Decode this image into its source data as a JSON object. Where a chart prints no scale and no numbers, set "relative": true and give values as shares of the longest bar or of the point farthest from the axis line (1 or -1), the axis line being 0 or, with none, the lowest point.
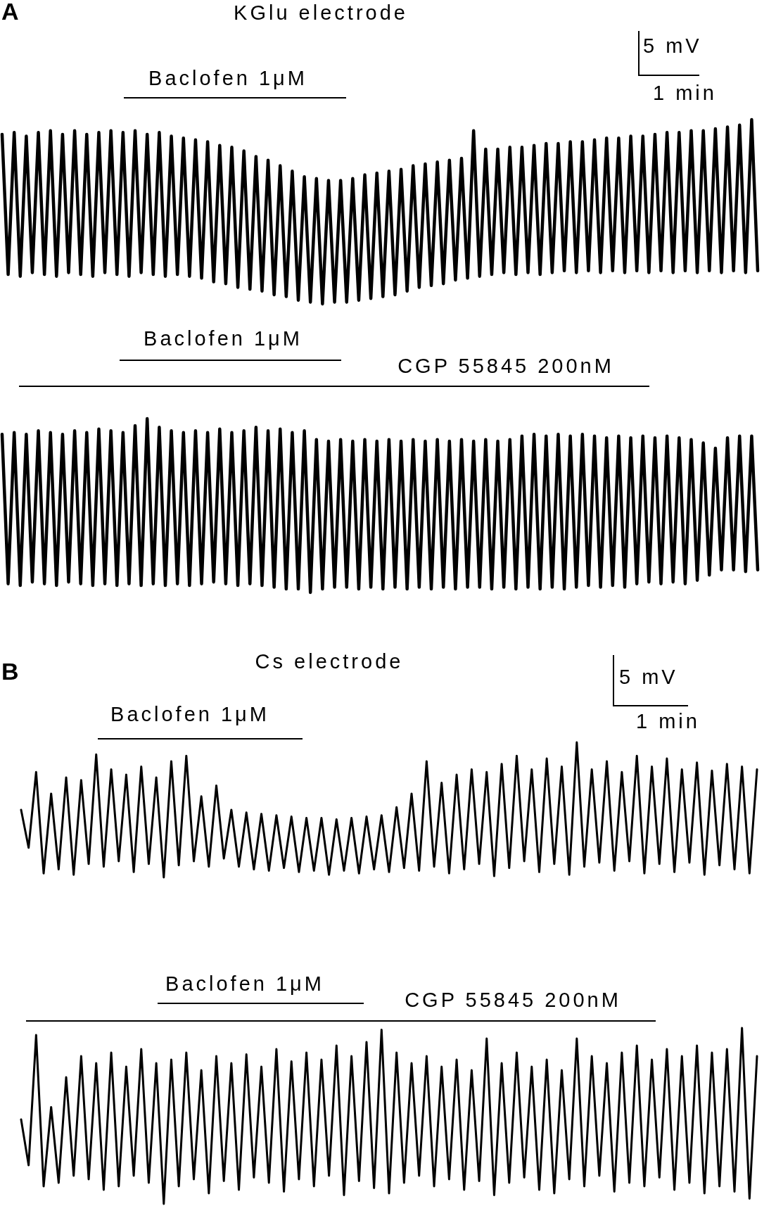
{
  "chart_data": [
    {
      "type": "line",
      "title": "KGlu electrode",
      "categories": [
        null,
        null,
        null,
        null,
        null,
        null,
        null,
        null,
        null,
        null,
        null,
        null,
        null,
        null,
        null,
        null,
        null,
        null,
        null,
        null,
        null,
        null,
        null,
        null,
        null,
        null,
        null,
        null,
        null,
        null,
        null,
        null,
        null,
        null,
        null,
        null,
        null,
        null,
        null,
        null,
        null,
        null,
        null,
        null,
        null,
        null,
        null,
        null,
        null,
        null,
        null,
        null,
        null,
        null,
        null,
        null,
        null,
        null,
        null,
        null,
        null,
        null,
        null,
        null,
        null,
        null,
        null,
        null,
        null,
        null,
        null,
        null,
        null,
        null,
        null,
        null,
        null,
        null,
        null,
        null,
        null,
        null,
        null,
        null,
        null,
        null,
        null,
        null,
        null,
        null,
        null,
        null,
        null,
        null,
        null,
        null,
        null,
        null,
        null,
        null,
        null,
        null,
        null,
        null,
        null,
        null,
        null,
        null,
        null,
        null,
        null,
        null,
        null,
        null,
        null,
        null,
        null,
        null,
        null,
        null,
        null,
        null,
        null,
        null,
        null,
        null
      ],
      "series": [
        {
          "color": "#000000",
          "values": [
            0.92,
            0.16,
            0.93,
            0.15,
            0.91,
            0.17,
            0.93,
            0.16,
            0.94,
            0.15,
            0.92,
            0.17,
            0.94,
            0.16,
            0.92,
            0.15,
            0.93,
            0.17,
            0.94,
            0.16,
            0.93,
            0.15,
            0.94,
            0.17,
            0.92,
            0.16,
            0.93,
            0.15,
            0.91,
            0.16,
            0.9,
            0.15,
            0.89,
            0.14,
            0.88,
            0.12,
            0.86,
            0.11,
            0.85,
            0.09,
            0.83,
            0.08,
            0.8,
            0.07,
            0.78,
            0.05,
            0.75,
            0.04,
            0.72,
            0.02,
            0.69,
            0.01,
            0.68,
            0,
            0.67,
            0.01,
            0.67,
            0.01,
            0.68,
            0.02,
            0.7,
            0.03,
            0.71,
            0.04,
            0.72,
            0.05,
            0.73,
            0.07,
            0.75,
            0.09,
            0.76,
            0.1,
            0.77,
            0.11,
            0.78,
            0.13,
            0.79,
            0.14,
            0.94,
            0.15,
            0.84,
            0.16,
            0.84,
            0.17,
            0.85,
            0.16,
            0.85,
            0.17,
            0.86,
            0.16,
            0.87,
            0.17,
            0.87,
            0.18,
            0.88,
            0.17,
            0.88,
            0.18,
            0.89,
            0.17,
            0.9,
            0.18,
            0.9,
            0.17,
            0.91,
            0.18,
            0.91,
            0.17,
            0.92,
            0.18,
            0.93,
            0.17,
            0.93,
            0.18,
            0.94,
            0.17,
            0.94,
            0.18,
            0.95,
            0.17,
            0.96,
            0.18,
            0.97,
            0.17,
            1,
            0.18
          ]
        }
      ],
      "relative": true,
      "tick_labels": false,
      "marker": "none",
      "annotations": [
        "A",
        "5 mV",
        "1 min",
        "Baclofen 1μM"
      ]
    },
    {
      "type": "line",
      "categories": [
        null,
        null,
        null,
        null,
        null,
        null,
        null,
        null,
        null,
        null,
        null,
        null,
        null,
        null,
        null,
        null,
        null,
        null,
        null,
        null,
        null,
        null,
        null,
        null,
        null,
        null,
        null,
        null,
        null,
        null,
        null,
        null,
        null,
        null,
        null,
        null,
        null,
        null,
        null,
        null,
        null,
        null,
        null,
        null,
        null,
        null,
        null,
        null,
        null,
        null,
        null,
        null,
        null,
        null,
        null,
        null,
        null,
        null,
        null,
        null,
        null,
        null,
        null,
        null,
        null,
        null,
        null,
        null,
        null,
        null,
        null,
        null,
        null,
        null,
        null,
        null,
        null,
        null,
        null,
        null,
        null,
        null,
        null,
        null,
        null,
        null,
        null,
        null,
        null,
        null,
        null,
        null,
        null,
        null,
        null,
        null,
        null,
        null,
        null,
        null,
        null,
        null,
        null,
        null,
        null,
        null,
        null,
        null,
        null,
        null,
        null,
        null,
        null,
        null,
        null,
        null,
        null,
        null,
        null,
        null,
        null,
        null,
        null,
        null,
        null,
        null
      ],
      "series": [
        {
          "color": "#000000",
          "values": [
            0.91,
            0.05,
            0.92,
            0.04,
            0.91,
            0.06,
            0.93,
            0.05,
            0.92,
            0.04,
            0.91,
            0.06,
            0.93,
            0.05,
            0.92,
            0.04,
            0.94,
            0.05,
            0.93,
            0.04,
            0.92,
            0.05,
            0.96,
            0.04,
            1,
            0.05,
            0.95,
            0.04,
            0.93,
            0.05,
            0.92,
            0.04,
            0.93,
            0.05,
            0.92,
            0.06,
            0.94,
            0.05,
            0.92,
            0.04,
            0.93,
            0.05,
            0.95,
            0.04,
            0.93,
            0.03,
            0.94,
            0.02,
            0.92,
            0.02,
            0.93,
            0,
            0.88,
            0.02,
            0.87,
            0.03,
            0.88,
            0.03,
            0.87,
            0.02,
            0.88,
            0.03,
            0.87,
            0.02,
            0.88,
            0.03,
            0.87,
            0.02,
            0.88,
            0.03,
            0.87,
            0.02,
            0.88,
            0.03,
            0.87,
            0.02,
            0.88,
            0.03,
            0.87,
            0.03,
            0.88,
            0.02,
            0.87,
            0.03,
            0.88,
            0.02,
            0.9,
            0.03,
            0.91,
            0.02,
            0.9,
            0.03,
            0.91,
            0.02,
            0.9,
            0.03,
            0.91,
            0.04,
            0.9,
            0.03,
            0.89,
            0.04,
            0.9,
            0.03,
            0.89,
            0.05,
            0.9,
            0.06,
            0.89,
            0.05,
            0.9,
            0.06,
            0.89,
            0.05,
            0.88,
            0.07,
            0.86,
            0.1,
            0.83,
            0.13,
            0.89,
            0.13,
            0.9,
            0.12,
            0.9,
            0.13
          ]
        }
      ],
      "relative": true,
      "tick_labels": false,
      "marker": "none",
      "annotations": [
        "Baclofen 1μM",
        "CGP 55845 200nM"
      ]
    },
    {
      "type": "line",
      "title": "Cs electrode",
      "categories": [
        null,
        null,
        null,
        null,
        null,
        null,
        null,
        null,
        null,
        null,
        null,
        null,
        null,
        null,
        null,
        null,
        null,
        null,
        null,
        null,
        null,
        null,
        null,
        null,
        null,
        null,
        null,
        null,
        null,
        null,
        null,
        null,
        null,
        null,
        null,
        null,
        null,
        null,
        null,
        null,
        null,
        null,
        null,
        null,
        null,
        null,
        null,
        null,
        null,
        null,
        null,
        null,
        null,
        null,
        null,
        null,
        null,
        null,
        null,
        null,
        null,
        null,
        null,
        null,
        null,
        null,
        null,
        null,
        null,
        null,
        null,
        null,
        null,
        null,
        null,
        null,
        null,
        null,
        null,
        null,
        null,
        null,
        null,
        null,
        null,
        null,
        null,
        null,
        null,
        null,
        null,
        null,
        null,
        null,
        null,
        null,
        null,
        null,
        null
      ],
      "series": [
        {
          "color": "#000000",
          "values": [
            0.5,
            0.22,
            0.78,
            0.03,
            0.62,
            0.06,
            0.74,
            0.02,
            0.72,
            0.1,
            0.91,
            0.08,
            0.8,
            0.12,
            0.76,
            0.04,
            0.82,
            0.1,
            0.74,
            0,
            0.86,
            0.09,
            0.9,
            0.12,
            0.6,
            0.08,
            0.68,
            0.14,
            0.5,
            0.08,
            0.48,
            0.06,
            0.47,
            0.05,
            0.46,
            0.07,
            0.45,
            0.04,
            0.44,
            0.05,
            0.44,
            0.02,
            0.43,
            0.05,
            0.44,
            0.03,
            0.45,
            0.06,
            0.46,
            0.04,
            0.52,
            0.07,
            0.62,
            0.05,
            0.86,
            0.08,
            0.7,
            0.03,
            0.76,
            0.06,
            0.8,
            0.1,
            0.78,
            0.01,
            0.84,
            0.07,
            0.9,
            0.12,
            0.8,
            0.04,
            0.88,
            0.1,
            0.82,
            0.02,
            1,
            0.08,
            0.8,
            0.11,
            0.86,
            0.05,
            0.78,
            0.12,
            0.9,
            0.03,
            0.82,
            0.1,
            0.88,
            0.04,
            0.8,
            0.11,
            0.85,
            0.02,
            0.79,
            0.09,
            0.84,
            0.06,
            0.82,
            0.03,
            0.8
          ]
        }
      ],
      "relative": true,
      "tick_labels": false,
      "marker": "none",
      "annotations": [
        "B",
        "5 mV",
        "1 min",
        "Baclofen 1μM"
      ]
    },
    {
      "type": "line",
      "categories": [
        null,
        null,
        null,
        null,
        null,
        null,
        null,
        null,
        null,
        null,
        null,
        null,
        null,
        null,
        null,
        null,
        null,
        null,
        null,
        null,
        null,
        null,
        null,
        null,
        null,
        null,
        null,
        null,
        null,
        null,
        null,
        null,
        null,
        null,
        null,
        null,
        null,
        null,
        null,
        null,
        null,
        null,
        null,
        null,
        null,
        null,
        null,
        null,
        null,
        null,
        null,
        null,
        null,
        null,
        null,
        null,
        null,
        null,
        null,
        null,
        null,
        null,
        null,
        null,
        null,
        null,
        null,
        null,
        null,
        null,
        null,
        null,
        null,
        null,
        null,
        null,
        null,
        null,
        null,
        null,
        null,
        null,
        null,
        null,
        null,
        null,
        null,
        null,
        null,
        null,
        null,
        null,
        null,
        null,
        null,
        null,
        null,
        null,
        null
      ],
      "series": [
        {
          "color": "#000000",
          "values": [
            0.48,
            0.22,
            0.96,
            0.1,
            0.55,
            0.12,
            0.72,
            0.16,
            0.84,
            0.14,
            0.8,
            0.08,
            0.86,
            0.1,
            0.78,
            0.16,
            0.88,
            0.12,
            0.8,
            0,
            0.82,
            0.1,
            0.86,
            0.14,
            0.76,
            0.06,
            0.84,
            0.13,
            0.8,
            0.08,
            0.85,
            0.15,
            0.78,
            0.12,
            0.88,
            0.07,
            0.81,
            0.14,
            0.86,
            0.1,
            0.82,
            0.16,
            0.9,
            0.05,
            0.84,
            0.13,
            0.92,
            0.09,
            0.99,
            0.06,
            0.86,
            0.12,
            0.8,
            0.16,
            0.84,
            0.1,
            0.78,
            0.14,
            0.82,
            0.08,
            0.76,
            0.13,
            0.94,
            0.05,
            0.8,
            0.12,
            0.86,
            0.15,
            0.78,
            0.08,
            0.82,
            0.06,
            0.76,
            0.14,
            0.94,
            0.1,
            0.84,
            0.16,
            0.8,
            0.07,
            0.86,
            0.12,
            0.9,
            0.1,
            0.82,
            0.15,
            0.88,
            0.08,
            0.84,
            0.12,
            0.9,
            0.06,
            0.86,
            0.1,
            0.88,
            0.07,
            1,
            0.03,
            0.84
          ]
        }
      ],
      "relative": true,
      "tick_labels": false,
      "marker": "none",
      "annotations": [
        "Baclofen 1μM",
        "CGP 55845 200nM"
      ]
    }
  ]
}
